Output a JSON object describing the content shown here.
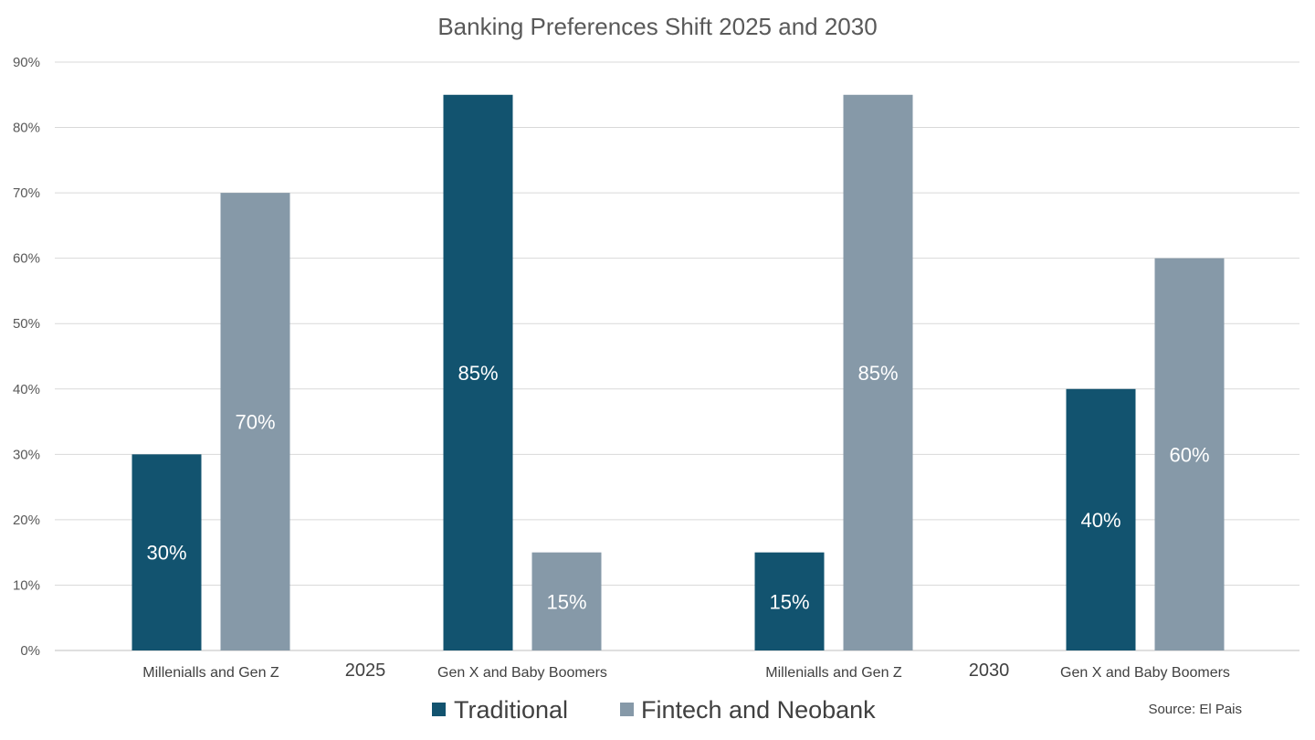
{
  "chart_data": {
    "type": "bar",
    "title": "Banking Preferences Shift 2025 and 2030",
    "xlabel": "",
    "ylabel": "",
    "ylim": [
      0,
      90
    ],
    "yticks": [
      "0%",
      "10%",
      "20%",
      "30%",
      "40%",
      "50%",
      "60%",
      "70%",
      "80%",
      "90%"
    ],
    "grid": true,
    "legend_position": "bottom",
    "groups": [
      {
        "label": "2025",
        "categories": [
          "Milleniall s and Gen Z",
          "Gen X and Baby Boomers"
        ]
      },
      {
        "label": "2030",
        "categories": [
          "Millenialls and Gen Z",
          "Gen X and Baby Boomers"
        ]
      }
    ],
    "categories": [
      "Millenialls and Gen Z",
      "Gen X and Baby Boomers",
      "Millenialls and Gen Z",
      "Gen X and Baby Boomers"
    ],
    "series": [
      {
        "name": "Traditional",
        "color": "#12536f",
        "values": [
          30,
          85,
          15,
          40
        ],
        "labels": [
          "30%",
          "85%",
          "15%",
          "40%"
        ]
      },
      {
        "name": "Fintech and Neobank",
        "color": "#8699a8",
        "values": [
          70,
          15,
          85,
          60
        ],
        "labels": [
          "70%",
          "15%",
          "85%",
          "60%"
        ]
      }
    ],
    "source": "Source: El Pais"
  }
}
